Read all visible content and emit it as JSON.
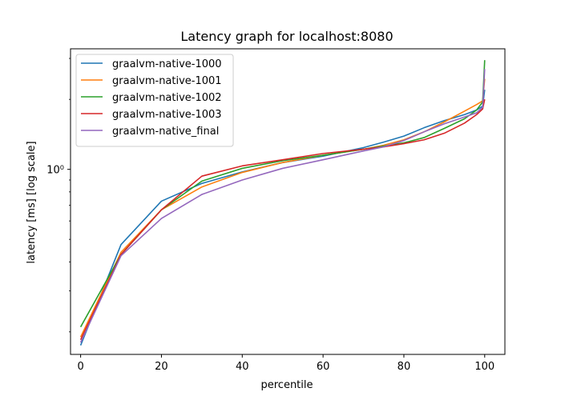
{
  "chart_data": {
    "type": "line",
    "title": "Latency graph for localhost:8080",
    "xlabel": "percentile",
    "ylabel": "latency [ms] [log scale]",
    "xlim": [
      -2.5,
      105
    ],
    "ylim": [
      0.16,
      3.3
    ],
    "yscale": "log",
    "x_ticks": [
      0,
      20,
      40,
      60,
      80,
      100
    ],
    "y_ticks": [
      {
        "value": 1.0,
        "label": "10⁰"
      }
    ],
    "legend_position": "upper left",
    "grid": false,
    "series": [
      {
        "name": "graalvm-native-1000",
        "color": "#1f77b4",
        "points": [
          [
            0,
            0.175
          ],
          [
            10,
            0.475
          ],
          [
            20,
            0.73
          ],
          [
            30,
            0.87
          ],
          [
            40,
            0.975
          ],
          [
            50,
            1.07
          ],
          [
            60,
            1.14
          ],
          [
            70,
            1.24
          ],
          [
            75,
            1.31
          ],
          [
            80,
            1.39
          ],
          [
            85,
            1.51
          ],
          [
            90,
            1.62
          ],
          [
            95,
            1.72
          ],
          [
            98,
            1.8
          ],
          [
            99.5,
            1.87
          ],
          [
            100,
            2.2
          ]
        ]
      },
      {
        "name": "graalvm-native-1001",
        "color": "#ff7f0e",
        "points": [
          [
            0,
            0.19
          ],
          [
            10,
            0.44
          ],
          [
            20,
            0.67
          ],
          [
            30,
            0.84
          ],
          [
            40,
            0.97
          ],
          [
            50,
            1.07
          ],
          [
            60,
            1.15
          ],
          [
            70,
            1.22
          ],
          [
            75,
            1.27
          ],
          [
            80,
            1.34
          ],
          [
            85,
            1.45
          ],
          [
            90,
            1.6
          ],
          [
            95,
            1.78
          ],
          [
            98,
            1.9
          ],
          [
            99.5,
            1.97
          ],
          [
            100,
            2.45
          ]
        ]
      },
      {
        "name": "graalvm-native-1002",
        "color": "#2ca02c",
        "points": [
          [
            0,
            0.21
          ],
          [
            10,
            0.43
          ],
          [
            20,
            0.67
          ],
          [
            30,
            0.89
          ],
          [
            40,
            1.01
          ],
          [
            50,
            1.09
          ],
          [
            60,
            1.15
          ],
          [
            70,
            1.22
          ],
          [
            75,
            1.26
          ],
          [
            80,
            1.3
          ],
          [
            85,
            1.37
          ],
          [
            90,
            1.5
          ],
          [
            95,
            1.65
          ],
          [
            98,
            1.8
          ],
          [
            99.5,
            1.95
          ],
          [
            100,
            2.95
          ]
        ]
      },
      {
        "name": "graalvm-native-1003",
        "color": "#d62728",
        "points": [
          [
            0,
            0.185
          ],
          [
            10,
            0.43
          ],
          [
            20,
            0.67
          ],
          [
            30,
            0.935
          ],
          [
            40,
            1.035
          ],
          [
            50,
            1.1
          ],
          [
            60,
            1.17
          ],
          [
            70,
            1.22
          ],
          [
            75,
            1.25
          ],
          [
            80,
            1.29
          ],
          [
            85,
            1.34
          ],
          [
            90,
            1.43
          ],
          [
            95,
            1.58
          ],
          [
            98,
            1.72
          ],
          [
            99.5,
            1.82
          ],
          [
            100,
            2.0
          ]
        ]
      },
      {
        "name": "graalvm-native_final",
        "color": "#9467bd",
        "points": [
          [
            0,
            0.18
          ],
          [
            10,
            0.425
          ],
          [
            20,
            0.615
          ],
          [
            30,
            0.78
          ],
          [
            40,
            0.9
          ],
          [
            50,
            1.01
          ],
          [
            60,
            1.1
          ],
          [
            70,
            1.2
          ],
          [
            75,
            1.25
          ],
          [
            80,
            1.33
          ],
          [
            85,
            1.45
          ],
          [
            90,
            1.57
          ],
          [
            95,
            1.68
          ],
          [
            98,
            1.75
          ],
          [
            99.5,
            1.85
          ],
          [
            100,
            2.7
          ]
        ]
      }
    ]
  }
}
